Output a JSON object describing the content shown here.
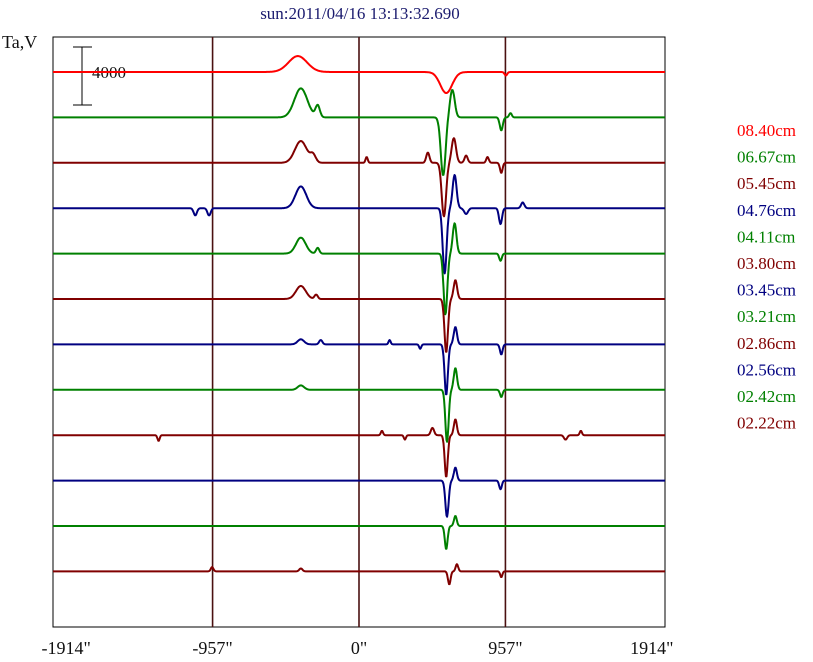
{
  "chart_data": {
    "type": "line",
    "title": "sun:2011/04/16 13:13:32.690",
    "ylabel": "Ta,V",
    "xlabel": "",
    "xlim": [
      -2000,
      2000
    ],
    "x_ticks": [
      {
        "value": -1914,
        "label": "-1914\""
      },
      {
        "value": -957,
        "label": "-957\""
      },
      {
        "value": 0,
        "label": "0\""
      },
      {
        "value": 957,
        "label": "957\""
      },
      {
        "value": 1914,
        "label": "1914\""
      }
    ],
    "vertical_grid_at": [
      -957,
      0,
      957
    ],
    "scale_bar": {
      "label": "4000",
      "value": 4000
    },
    "series": [
      {
        "name": "08.40cm",
        "color": "#ff0000",
        "features": [
          {
            "x": -400,
            "amp": 1100,
            "w": 85
          },
          {
            "x": 570,
            "amp": -1450,
            "w": 55
          },
          {
            "x": 960,
            "amp": -250,
            "w": 12
          }
        ]
      },
      {
        "name": "06.67cm",
        "color": "#008000",
        "features": [
          {
            "x": -380,
            "amp": 2000,
            "w": 60
          },
          {
            "x": 550,
            "amp": -4000,
            "w": 22
          },
          {
            "x": 610,
            "amp": 1900,
            "w": 22
          },
          {
            "x": -270,
            "amp": 800,
            "w": 20
          },
          {
            "x": 930,
            "amp": -900,
            "w": 14
          },
          {
            "x": 990,
            "amp": 300,
            "w": 12
          }
        ]
      },
      {
        "name": "05.45cm",
        "color": "#800000",
        "features": [
          {
            "x": -380,
            "amp": 1500,
            "w": 55
          },
          {
            "x": -300,
            "amp": 500,
            "w": 25
          },
          {
            "x": 555,
            "amp": -3700,
            "w": 20
          },
          {
            "x": 620,
            "amp": 1700,
            "w": 20
          },
          {
            "x": 450,
            "amp": 700,
            "w": 15
          },
          {
            "x": 700,
            "amp": 500,
            "w": 15
          },
          {
            "x": 840,
            "amp": 400,
            "w": 12
          },
          {
            "x": 930,
            "amp": -700,
            "w": 12
          },
          {
            "x": 50,
            "amp": 400,
            "w": 10
          }
        ]
      },
      {
        "name": "04.76cm",
        "color": "#000080",
        "features": [
          {
            "x": -380,
            "amp": 1500,
            "w": 50
          },
          {
            "x": 560,
            "amp": -4500,
            "w": 18
          },
          {
            "x": 625,
            "amp": 2300,
            "w": 18
          },
          {
            "x": 700,
            "amp": -400,
            "w": 18
          },
          {
            "x": -1070,
            "amp": -500,
            "w": 15
          },
          {
            "x": -980,
            "amp": -500,
            "w": 15
          },
          {
            "x": 925,
            "amp": -1100,
            "w": 14
          },
          {
            "x": 1070,
            "amp": 400,
            "w": 15
          }
        ]
      },
      {
        "name": "04.11cm",
        "color": "#008000",
        "features": [
          {
            "x": -380,
            "amp": 1100,
            "w": 45
          },
          {
            "x": 565,
            "amp": -4200,
            "w": 17
          },
          {
            "x": 625,
            "amp": 2100,
            "w": 17
          },
          {
            "x": -270,
            "amp": 400,
            "w": 15
          },
          {
            "x": 925,
            "amp": -500,
            "w": 12
          }
        ]
      },
      {
        "name": "03.80cm",
        "color": "#800000",
        "features": [
          {
            "x": -380,
            "amp": 900,
            "w": 45
          },
          {
            "x": 570,
            "amp": -3700,
            "w": 16
          },
          {
            "x": 630,
            "amp": 1300,
            "w": 16
          },
          {
            "x": -280,
            "amp": 300,
            "w": 15
          }
        ]
      },
      {
        "name": "03.45cm",
        "color": "#000080",
        "features": [
          {
            "x": 570,
            "amp": -3500,
            "w": 15
          },
          {
            "x": 630,
            "amp": 1200,
            "w": 15
          },
          {
            "x": -380,
            "amp": 350,
            "w": 30
          },
          {
            "x": -250,
            "amp": 300,
            "w": 15
          },
          {
            "x": 200,
            "amp": 300,
            "w": 10
          },
          {
            "x": 400,
            "amp": -300,
            "w": 10
          },
          {
            "x": 930,
            "amp": -700,
            "w": 12
          }
        ]
      },
      {
        "name": "03.21cm",
        "color": "#008000",
        "features": [
          {
            "x": 575,
            "amp": -3600,
            "w": 15
          },
          {
            "x": 630,
            "amp": 1500,
            "w": 15
          },
          {
            "x": -380,
            "amp": 300,
            "w": 30
          },
          {
            "x": 930,
            "amp": -500,
            "w": 12
          }
        ]
      },
      {
        "name": "02.86cm",
        "color": "#800000",
        "features": [
          {
            "x": 570,
            "amp": -2900,
            "w": 14
          },
          {
            "x": 630,
            "amp": 1100,
            "w": 14
          },
          {
            "x": -1310,
            "amp": -400,
            "w": 10
          },
          {
            "x": 150,
            "amp": 300,
            "w": 10
          },
          {
            "x": 300,
            "amp": -300,
            "w": 10
          },
          {
            "x": 480,
            "amp": 500,
            "w": 15
          },
          {
            "x": 1350,
            "amp": -300,
            "w": 15
          },
          {
            "x": 1450,
            "amp": 300,
            "w": 10
          }
        ]
      },
      {
        "name": "02.56cm",
        "color": "#000080",
        "features": [
          {
            "x": 575,
            "amp": -2500,
            "w": 15
          },
          {
            "x": 630,
            "amp": 900,
            "w": 14
          },
          {
            "x": 925,
            "amp": -600,
            "w": 12
          }
        ]
      },
      {
        "name": "02.42cm",
        "color": "#008000",
        "features": [
          {
            "x": 570,
            "amp": -1600,
            "w": 13
          },
          {
            "x": 630,
            "amp": 700,
            "w": 13
          }
        ]
      },
      {
        "name": "02.22cm",
        "color": "#800000",
        "features": [
          {
            "x": 590,
            "amp": -900,
            "w": 12
          },
          {
            "x": 640,
            "amp": 500,
            "w": 12
          },
          {
            "x": -960,
            "amp": 300,
            "w": 12
          },
          {
            "x": -380,
            "amp": 200,
            "w": 15
          },
          {
            "x": 930,
            "amp": -400,
            "w": 10
          }
        ]
      }
    ]
  }
}
